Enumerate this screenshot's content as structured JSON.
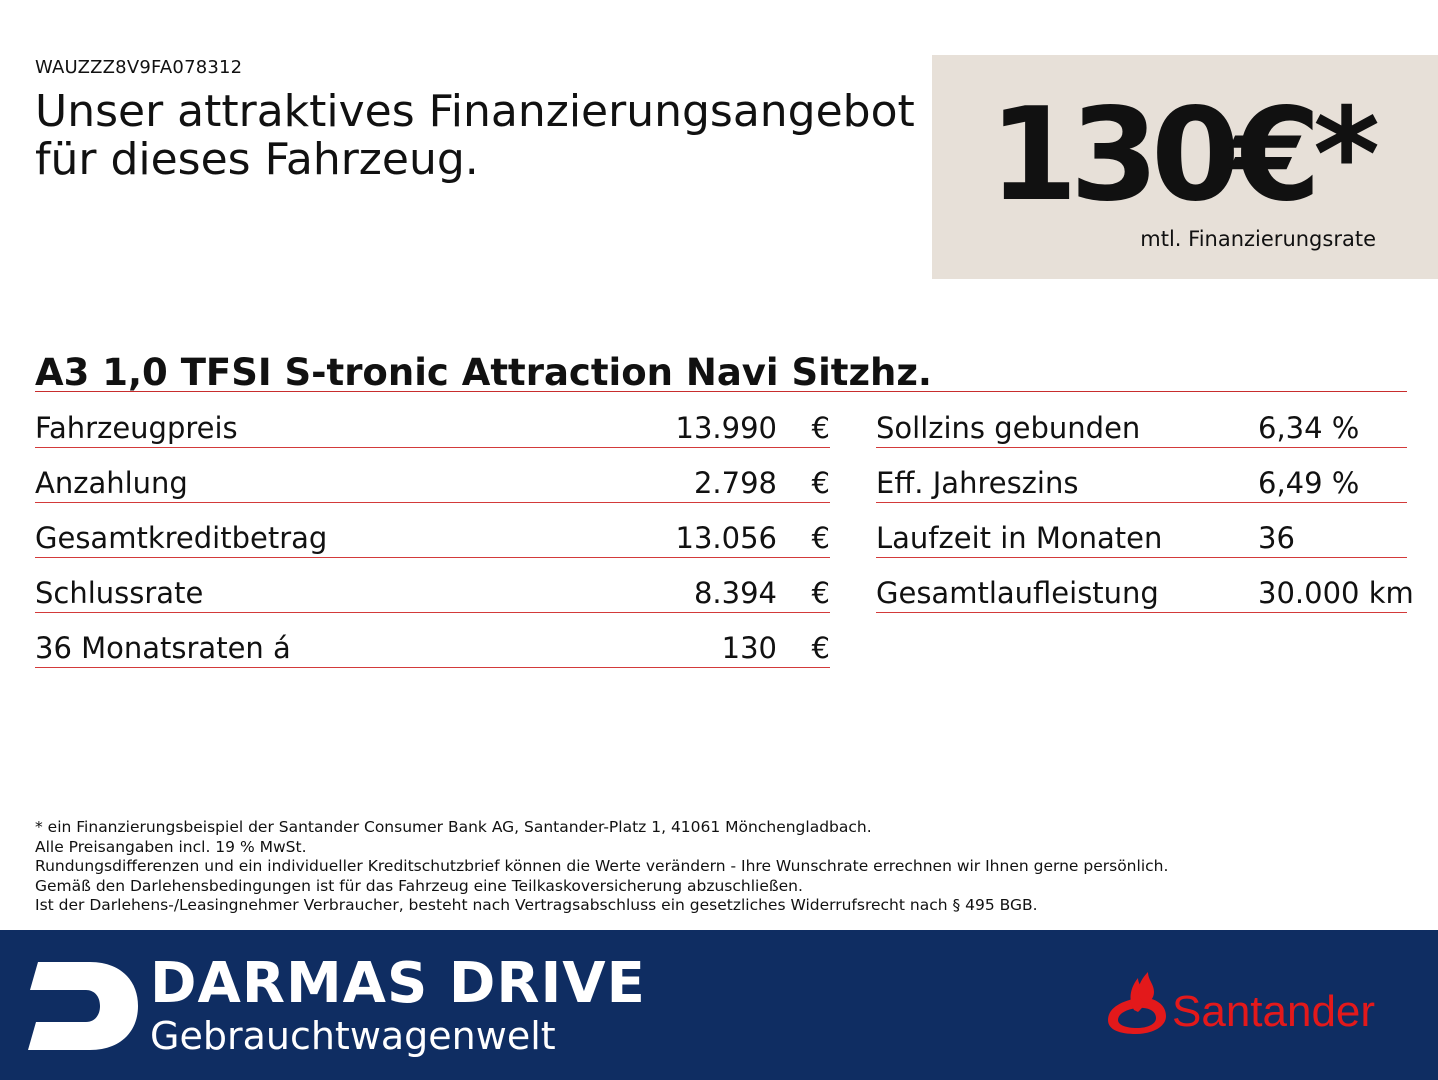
{
  "header": {
    "vin": "WAUZZZ8V9FA078312",
    "headline_line1": "Unser attraktives Finanzierungsangebot",
    "headline_line2": "für dieses Fahrzeug."
  },
  "price_box": {
    "amount": "130€*",
    "caption": "mtl. Finanzierungsrate",
    "background_color": "#e7e0d8"
  },
  "model": "A3 1,0 TFSI S-tronic Attraction Navi Sitzhz.",
  "left_table": [
    {
      "label": "Fahrzeugpreis",
      "value": "13.990",
      "unit": "€"
    },
    {
      "label": "Anzahlung",
      "value": "2.798",
      "unit": "€"
    },
    {
      "label": "Gesamtkreditbetrag",
      "value": "13.056",
      "unit": "€"
    },
    {
      "label": "Schlussrate",
      "value": "8.394",
      "unit": "€"
    },
    {
      "label": "36 Monatsraten á",
      "value": "130",
      "unit": "€"
    }
  ],
  "right_table": [
    {
      "label": "Sollzins gebunden",
      "value": "6,34 %"
    },
    {
      "label": "Eff. Jahreszins",
      "value": "6,49 %"
    },
    {
      "label": "Laufzeit in Monaten",
      "value": "36"
    },
    {
      "label": "Gesamtlaufleistung",
      "value": "30.000 km"
    }
  ],
  "footnotes": [
    "* ein Finanzierungsbeispiel der Santander Consumer Bank AG, Santander-Platz 1, 41061 Mönchengladbach.",
    "Alle Preisangaben incl. 19 % MwSt.",
    "Rundungsdifferenzen und ein individueller Kreditschutzbrief können die Werte verändern - Ihre Wunschrate errechnen wir Ihnen gerne persönlich.",
    "Gemäß den Darlehensbedingungen ist für das Fahrzeug eine Teilkaskoversicherung abzuschließen.",
    "Ist der Darlehens-/Leasingnehmer Verbraucher, besteht nach Vertragsabschluss ein gesetzliches Widerrufsrecht nach § 495 BGB."
  ],
  "footer": {
    "dealer_name": "DARMAS DRIVE",
    "dealer_sub": "Gebrauchtwagenwelt",
    "bank_logo_text": "Santander",
    "background_color": "#0f2d62",
    "bank_color": "#e3191b",
    "divider_color": "#d33a3a"
  }
}
